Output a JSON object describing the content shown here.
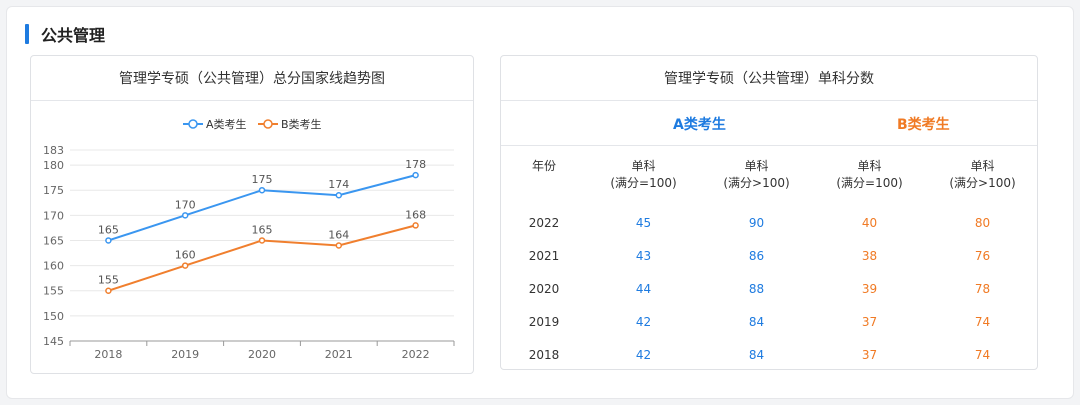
{
  "section": {
    "title": "公共管理"
  },
  "chart_card": {
    "title": "管理学专硕（公共管理）总分国家线趋势图"
  },
  "table_card": {
    "title": "管理学专硕（公共管理）单科分数",
    "group_a": "A类考生",
    "group_b": "B类考生",
    "headers": {
      "year": "年份",
      "col1": [
        "单科",
        "(满分=100)"
      ],
      "col2": [
        "单科",
        "(满分>100)"
      ],
      "col3": [
        "单科",
        "(满分=100)"
      ],
      "col4": [
        "单科",
        "(满分>100)"
      ]
    },
    "rows": [
      {
        "year": "2022",
        "a1": "45",
        "a2": "90",
        "b1": "40",
        "b2": "80"
      },
      {
        "year": "2021",
        "a1": "43",
        "a2": "86",
        "b1": "38",
        "b2": "76"
      },
      {
        "year": "2020",
        "a1": "44",
        "a2": "88",
        "b1": "39",
        "b2": "78"
      },
      {
        "year": "2019",
        "a1": "42",
        "a2": "84",
        "b1": "37",
        "b2": "74"
      },
      {
        "year": "2018",
        "a1": "42",
        "a2": "84",
        "b1": "37",
        "b2": "74"
      }
    ]
  },
  "chart_data": {
    "type": "line",
    "categories": [
      "2018",
      "2019",
      "2020",
      "2021",
      "2022"
    ],
    "series": [
      {
        "name": "A类考生",
        "values": [
          165,
          170,
          175,
          174,
          178
        ],
        "color": "#3a96f0"
      },
      {
        "name": "B类考生",
        "values": [
          155,
          160,
          165,
          164,
          168
        ],
        "color": "#f07f2e"
      }
    ],
    "ylim": [
      145,
      183
    ],
    "yticks": [
      145,
      150,
      155,
      160,
      165,
      170,
      175,
      180,
      183
    ],
    "legend": "top-center",
    "grid": true,
    "data_labels": true
  }
}
